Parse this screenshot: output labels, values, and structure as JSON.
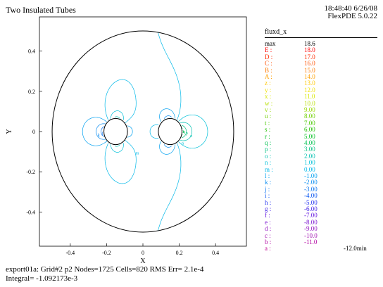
{
  "header": {
    "title": "Two Insulated Tubes",
    "time": "18:48:40 6/26/08",
    "version": "FlexPDE 5.0.22"
  },
  "footer": {
    "line1": "export01a:  Grid#2  p2  Nodes=1725 Cells=820 RMS Err= 2.1e-4",
    "line2": "Integral= -1.092173e-3"
  },
  "legend": {
    "title": "fluxd_x",
    "max_label": "max",
    "max_value": "18.6",
    "min_value": "-12.0",
    "min_suffix": "min",
    "levels": [
      {
        "key": "E :",
        "value": "18.0",
        "color": "#ff0000"
      },
      {
        "key": "D :",
        "value": "17.0",
        "color": "#ff2a00"
      },
      {
        "key": "C :",
        "value": "16.0",
        "color": "#ff5000"
      },
      {
        "key": "B :",
        "value": "15.0",
        "color": "#ff7a00"
      },
      {
        "key": "A :",
        "value": "14.0",
        "color": "#ffa000"
      },
      {
        "key": "z :",
        "value": "13.0",
        "color": "#ffc800"
      },
      {
        "key": "y :",
        "value": "12.0",
        "color": "#f0e000"
      },
      {
        "key": "x :",
        "value": "11.0",
        "color": "#d8e800"
      },
      {
        "key": "w :",
        "value": "10.0",
        "color": "#b8e000"
      },
      {
        "key": "v :",
        "value": "9.00",
        "color": "#98d800"
      },
      {
        "key": "u :",
        "value": "8.00",
        "color": "#70d000"
      },
      {
        "key": "t :",
        "value": "7.00",
        "color": "#48c800"
      },
      {
        "key": "s :",
        "value": "6.00",
        "color": "#20c000"
      },
      {
        "key": "r :",
        "value": "5.00",
        "color": "#00c020"
      },
      {
        "key": "q :",
        "value": "4.00",
        "color": "#00c050"
      },
      {
        "key": "p :",
        "value": "3.00",
        "color": "#00c080"
      },
      {
        "key": "o :",
        "value": "2.00",
        "color": "#00c0b0"
      },
      {
        "key": "n :",
        "value": "1.00",
        "color": "#00c0d8"
      },
      {
        "key": "m :",
        "value": "0.00",
        "color": "#00b8e8"
      },
      {
        "key": "l :",
        "value": "-1.00",
        "color": "#00a0f0"
      },
      {
        "key": "k :",
        "value": "-2.00",
        "color": "#0088f0"
      },
      {
        "key": "j :",
        "value": "-3.00",
        "color": "#0070f0"
      },
      {
        "key": "i :",
        "value": "-4.00",
        "color": "#0050f0"
      },
      {
        "key": "h :",
        "value": "-5.00",
        "color": "#2030f0"
      },
      {
        "key": "g :",
        "value": "-6.00",
        "color": "#4020e8"
      },
      {
        "key": "f :",
        "value": "-7.00",
        "color": "#6010e0"
      },
      {
        "key": "e :",
        "value": "-8.00",
        "color": "#7810d0"
      },
      {
        "key": "d :",
        "value": "-9.00",
        "color": "#9010c0"
      },
      {
        "key": "c :",
        "value": "-10.0",
        "color": "#a010b0"
      },
      {
        "key": "b :",
        "value": "-11.0",
        "color": "#b000a0"
      },
      {
        "key": "a :",
        "value": "-12.0",
        "color": "#c00090"
      }
    ]
  },
  "chart_data": {
    "type": "contour",
    "field": "fluxd_x",
    "title": "Two Insulated Tubes",
    "xlabel": "X",
    "ylabel": "Y",
    "xlim": [
      -0.57,
      0.57
    ],
    "ylim": [
      -0.57,
      0.57
    ],
    "xticks": [
      -0.4,
      -0.2,
      0,
      0.2,
      0.4
    ],
    "yticks": [
      -0.4,
      -0.2,
      0,
      0.2,
      0.4
    ],
    "xtick_labels": [
      "-0.4",
      "-0.2",
      "0",
      "0.2",
      "0.4"
    ],
    "ytick_labels": [
      "-0.4",
      "-0.2",
      "0",
      "0.2",
      "0.4"
    ],
    "domain": {
      "outer_circle": {
        "cx": 0,
        "cy": 0,
        "r": 0.5
      }
    },
    "holes": [
      {
        "cx": -0.15,
        "cy": 0,
        "r": 0.065
      },
      {
        "cx": 0.15,
        "cy": 0,
        "r": 0.065
      }
    ],
    "max": 18.6,
    "min": -12.0
  }
}
